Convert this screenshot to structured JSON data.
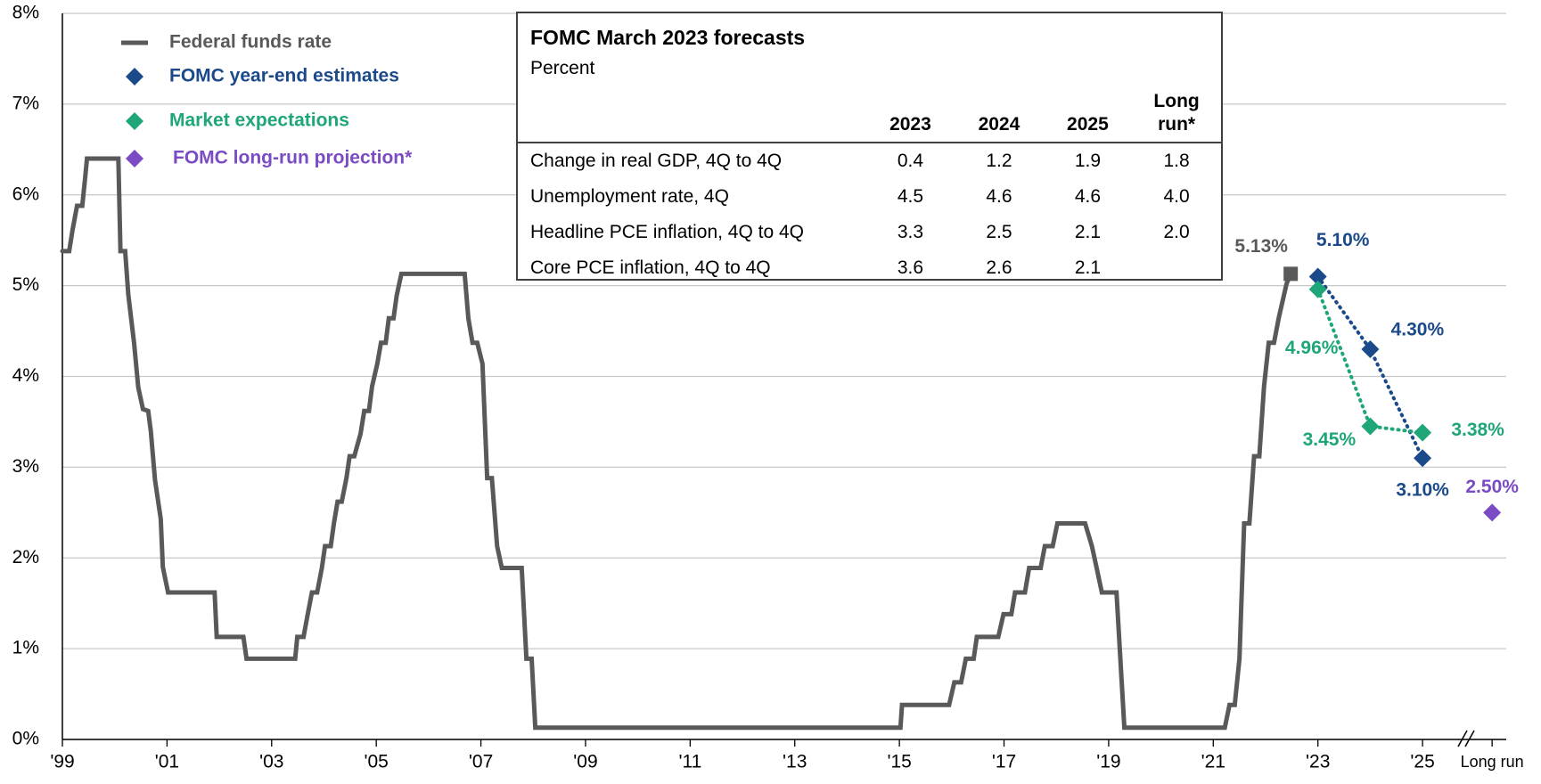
{
  "chart_data": {
    "type": "line",
    "xlim": [
      1999,
      2026.6
    ],
    "ylim": [
      0,
      8
    ],
    "grid": true,
    "legend": "upper left",
    "xticks": [
      {
        "value": 1999,
        "label": "'99"
      },
      {
        "value": 2001,
        "label": "'01"
      },
      {
        "value": 2003,
        "label": "'03"
      },
      {
        "value": 2005,
        "label": "'05"
      },
      {
        "value": 2007,
        "label": "'07"
      },
      {
        "value": 2009,
        "label": "'09"
      },
      {
        "value": 2011,
        "label": "'11"
      },
      {
        "value": 2013,
        "label": "'13"
      },
      {
        "value": 2015,
        "label": "'15"
      },
      {
        "value": 2017,
        "label": "'17"
      },
      {
        "value": 2019,
        "label": "'19"
      },
      {
        "value": 2021,
        "label": "'21"
      },
      {
        "value": 2023,
        "label": "'23"
      },
      {
        "value": 2025,
        "label": "'25"
      },
      {
        "value": 2026.33,
        "label": "Long run"
      }
    ],
    "yticks": [
      {
        "value": 0,
        "label": "0%"
      },
      {
        "value": 1,
        "label": "1%"
      },
      {
        "value": 2,
        "label": "2%"
      },
      {
        "value": 3,
        "label": "3%"
      },
      {
        "value": 4,
        "label": "4%"
      },
      {
        "value": 5,
        "label": "5%"
      },
      {
        "value": 6,
        "label": "6%"
      },
      {
        "value": 7,
        "label": "7%"
      },
      {
        "value": 8,
        "label": "8%"
      }
    ],
    "series": [
      {
        "name": "Federal funds rate",
        "color": "#595959",
        "style": "line",
        "end_marker": "square",
        "x": [
          1999.0,
          1999.13,
          1999.19,
          1999.28,
          1999.38,
          1999.43,
          1999.47,
          2000.07,
          2000.11,
          2000.2,
          2000.26,
          2000.37,
          2000.45,
          2000.54,
          2000.64,
          2000.69,
          2000.77,
          2000.88,
          2000.92,
          2001.02,
          2001.91,
          2001.95,
          2002.46,
          2002.52,
          2003.45,
          2003.49,
          2003.61,
          2003.68,
          2003.77,
          2003.87,
          2003.96,
          2004.02,
          2004.13,
          2004.19,
          2004.26,
          2004.34,
          2004.43,
          2004.49,
          2004.58,
          2004.7,
          2004.77,
          2004.86,
          2004.92,
          2005.02,
          2005.09,
          2005.18,
          2005.24,
          2005.33,
          2005.39,
          2005.48,
          2006.69,
          2006.76,
          2006.84,
          2006.93,
          2007.03,
          2007.12,
          2007.21,
          2007.31,
          2007.4,
          2007.78,
          2007.87,
          2007.97,
          2008.04,
          2015.02,
          2015.05,
          2015.95,
          2016.05,
          2016.18,
          2016.27,
          2016.42,
          2016.48,
          2016.89,
          2016.99,
          2017.14,
          2017.21,
          2017.4,
          2017.48,
          2017.7,
          2017.78,
          2017.93,
          2018.02,
          2018.55,
          2018.68,
          2018.77,
          2018.87,
          2019.15,
          2019.3,
          2021.22,
          2021.31,
          2021.41,
          2021.5,
          2021.59,
          2021.69,
          2021.78,
          2021.88,
          2021.97,
          2022.06,
          2022.16,
          2022.25,
          2022.4,
          2022.48
        ],
        "values": [
          5.38,
          5.38,
          5.6,
          5.88,
          5.88,
          6.16,
          6.4,
          6.4,
          5.38,
          5.38,
          4.9,
          4.37,
          3.88,
          3.64,
          3.62,
          3.4,
          2.86,
          2.43,
          1.9,
          1.62,
          1.62,
          1.13,
          1.13,
          0.89,
          0.89,
          1.13,
          1.13,
          1.35,
          1.62,
          1.62,
          1.89,
          2.13,
          2.13,
          2.38,
          2.62,
          2.62,
          2.88,
          3.12,
          3.12,
          3.37,
          3.62,
          3.62,
          3.89,
          4.14,
          4.37,
          4.37,
          4.64,
          4.64,
          4.89,
          5.13,
          5.13,
          4.64,
          4.37,
          4.37,
          4.14,
          2.88,
          2.88,
          2.13,
          1.89,
          1.89,
          0.89,
          0.89,
          0.13,
          0.13,
          0.38,
          0.38,
          0.63,
          0.63,
          0.89,
          0.89,
          1.13,
          1.13,
          1.38,
          1.38,
          1.62,
          1.62,
          1.89,
          1.89,
          2.13,
          2.13,
          2.38,
          2.38,
          2.13,
          1.89,
          1.62,
          1.62,
          0.13,
          0.13,
          0.38,
          0.38,
          0.89,
          2.38,
          2.38,
          3.12,
          3.12,
          3.89,
          4.37,
          4.37,
          4.64,
          5.02,
          5.13
        ],
        "value_labels": [
          null,
          null,
          null,
          null,
          null,
          null,
          null,
          null,
          null,
          null,
          null,
          null,
          null,
          null,
          null,
          null,
          null,
          null,
          null,
          null,
          null,
          null,
          null,
          null,
          null,
          null,
          null,
          null,
          null,
          null,
          null,
          null,
          null,
          null,
          null,
          null,
          null,
          null,
          null,
          null,
          null,
          null,
          null,
          null,
          null,
          null,
          null,
          null,
          null,
          null,
          null,
          null,
          null,
          null,
          null,
          null,
          null,
          null,
          null,
          null,
          null,
          null,
          null,
          null,
          null,
          null,
          null,
          null,
          null,
          null,
          null,
          null,
          null,
          null,
          null,
          null,
          null,
          null,
          null,
          null,
          null,
          null,
          null,
          null,
          null,
          null,
          null,
          null,
          null,
          null,
          null,
          null,
          null,
          null,
          null,
          null,
          null,
          null,
          null,
          null,
          "5.13%"
        ]
      },
      {
        "name": "FOMC year-end estimates",
        "color": "#1b4a8a",
        "style": "dotted",
        "marker": "diamond",
        "x": [
          2023,
          2024,
          2025
        ],
        "values": [
          5.1,
          4.3,
          3.1
        ],
        "value_labels": [
          "5.10%",
          "4.30%",
          "3.10%"
        ]
      },
      {
        "name": "Market expectations",
        "color": "#1fa678",
        "style": "dotted",
        "marker": "diamond",
        "x": [
          2023,
          2024,
          2025
        ],
        "values": [
          4.96,
          3.45,
          3.38
        ],
        "value_labels": [
          "4.96%",
          "3.45%",
          "3.38%"
        ]
      },
      {
        "name": "FOMC long-run projection*",
        "color": "#7b4bc4",
        "style": "none",
        "marker": "diamond",
        "x": [
          2026.33
        ],
        "values": [
          2.5
        ],
        "value_labels": [
          "2.50%"
        ]
      }
    ],
    "table": {
      "title": "FOMC March 2023 forecasts",
      "subtitle": "Percent",
      "columns": [
        "2023",
        "2024",
        "2025",
        "Long run*"
      ],
      "rows": [
        {
          "label": "Change in real GDP, 4Q to 4Q",
          "cells": [
            "0.4",
            "1.2",
            "1.9",
            "1.8"
          ]
        },
        {
          "label": "Unemployment rate, 4Q",
          "cells": [
            "4.5",
            "4.6",
            "4.6",
            "4.0"
          ]
        },
        {
          "label": "Headline PCE inflation, 4Q to 4Q",
          "cells": [
            "3.3",
            "2.5",
            "2.1",
            "2.0"
          ]
        },
        {
          "label": "Core PCE inflation, 4Q to 4Q",
          "cells": [
            "3.6",
            "2.6",
            "2.1"
          ]
        }
      ]
    }
  }
}
